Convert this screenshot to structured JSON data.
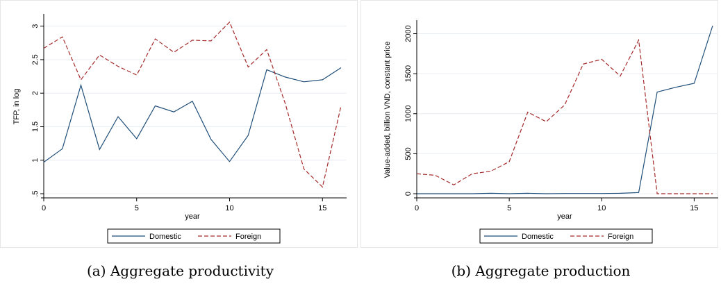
{
  "chart_data": [
    {
      "type": "line",
      "xlabel": "year",
      "ylabel": "TFP, in log",
      "xlim": [
        0,
        16
      ],
      "ylim": [
        0.5,
        3.1
      ],
      "x_ticks": [
        0,
        5,
        10,
        15
      ],
      "x_tick_labels": [
        "0",
        "5",
        "10",
        "15"
      ],
      "y_ticks": [
        0.5,
        1,
        1.5,
        2,
        2.5,
        3
      ],
      "y_tick_labels": [
        ".5",
        "1",
        "1.5",
        "2",
        "2.5",
        "3"
      ],
      "grid": true,
      "legend_position": "bottom",
      "x": [
        0,
        1,
        2,
        3,
        4,
        5,
        6,
        7,
        8,
        9,
        10,
        11,
        12,
        13,
        14,
        15,
        16
      ],
      "series": [
        {
          "name": "Domestic",
          "color": "#1f4e79",
          "style": "solid",
          "values": [
            0.97,
            1.17,
            2.12,
            1.16,
            1.65,
            1.32,
            1.81,
            1.72,
            1.88,
            1.31,
            0.98,
            1.37,
            2.35,
            2.24,
            2.17,
            2.2,
            2.38
          ]
        },
        {
          "name": "Foreign",
          "color": "#a52a2a",
          "style": "dashed",
          "values": [
            2.67,
            2.84,
            2.2,
            2.57,
            2.4,
            2.27,
            2.81,
            2.61,
            2.79,
            2.78,
            3.06,
            2.39,
            2.65,
            1.84,
            0.87,
            0.6,
            1.81
          ]
        }
      ],
      "caption": "(a) Aggregate productivity"
    },
    {
      "type": "line",
      "xlabel": "year",
      "ylabel": "Value-added, billion VND, constant price",
      "xlim": [
        0,
        16
      ],
      "ylim": [
        0,
        2100
      ],
      "x_ticks": [
        0,
        5,
        10,
        15
      ],
      "x_tick_labels": [
        "0",
        "5",
        "10",
        "15"
      ],
      "y_ticks": [
        0,
        500,
        1000,
        1500,
        2000
      ],
      "y_tick_labels": [
        "0",
        "500",
        "1000",
        "1500",
        "2000"
      ],
      "grid": true,
      "legend_position": "bottom",
      "x": [
        0,
        1,
        2,
        3,
        4,
        5,
        6,
        7,
        8,
        9,
        10,
        11,
        12,
        13,
        14,
        15,
        16
      ],
      "series": [
        {
          "name": "Domestic",
          "color": "#1f4e79",
          "style": "solid",
          "values": [
            0,
            0,
            0,
            0,
            5,
            0,
            5,
            0,
            3,
            3,
            3,
            5,
            15,
            1270,
            1330,
            1380,
            2100
          ]
        },
        {
          "name": "Foreign",
          "color": "#a52a2a",
          "style": "dashed",
          "values": [
            250,
            230,
            110,
            250,
            280,
            400,
            1020,
            900,
            1110,
            1620,
            1680,
            1470,
            1920,
            0,
            0,
            0,
            0
          ]
        }
      ],
      "caption": "(b) Aggregate production"
    }
  ]
}
